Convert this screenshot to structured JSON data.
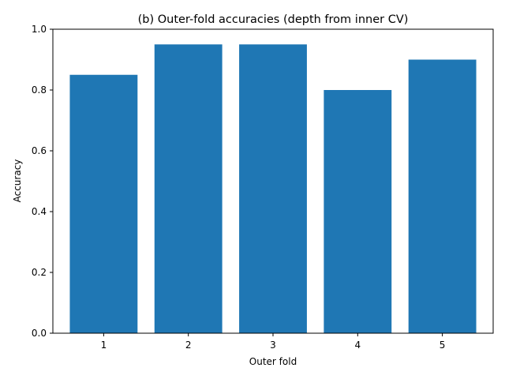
{
  "chart_data": {
    "type": "bar",
    "title": "(b) Outer-fold accuracies (depth from inner CV)",
    "xlabel": "Outer fold",
    "ylabel": "Accuracy",
    "categories": [
      "1",
      "2",
      "3",
      "4",
      "5"
    ],
    "values": [
      0.85,
      0.95,
      0.95,
      0.8,
      0.9
    ],
    "ylim": [
      0,
      1.0
    ],
    "yticks": [
      0.0,
      0.2,
      0.4,
      0.6,
      0.8,
      1.0
    ],
    "ytick_labels": [
      "0.0",
      "0.2",
      "0.4",
      "0.6",
      "0.8",
      "1.0"
    ],
    "grid": false,
    "bar_color": "#1f77b4"
  }
}
